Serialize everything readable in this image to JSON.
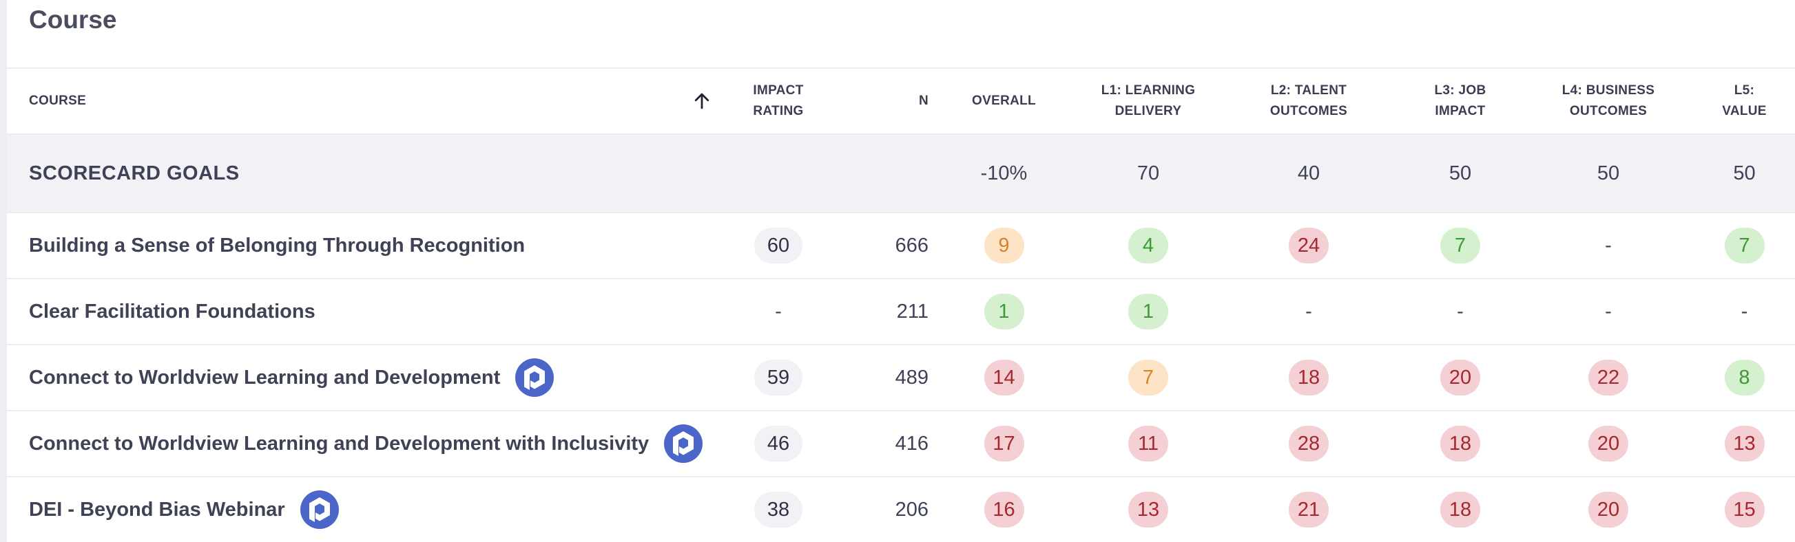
{
  "page": {
    "title": "Course"
  },
  "colors": {
    "green_bg": "#d4f0cf",
    "green_text": "#3e9a34",
    "orange_bg": "#fde4c7",
    "orange_text": "#d8832a",
    "red_bg": "#f4cfd4",
    "red_text": "#a8262f",
    "neutral_bg": "#f1f1f6",
    "logo": "#4b66c8"
  },
  "table": {
    "headers": {
      "course": "COURSE",
      "impact_rating": [
        "IMPACT",
        "RATING"
      ],
      "n": "N",
      "overall": "OVERALL",
      "l1": [
        "L1: LEARNING",
        "DELIVERY"
      ],
      "l2": [
        "L2: TALENT",
        "OUTCOMES"
      ],
      "l3": [
        "L3: JOB",
        "IMPACT"
      ],
      "l4": [
        "L4: BUSINESS",
        "OUTCOMES"
      ],
      "l5": [
        "L5:",
        "VALUE"
      ]
    },
    "sort_icon": "arrow-up-icon",
    "goals": {
      "label": "SCORECARD GOALS",
      "overall": "-10%",
      "l1": "70",
      "l2": "40",
      "l3": "50",
      "l4": "50",
      "l5": "50"
    },
    "rows": [
      {
        "course": "Building a Sense of Belonging Through Recognition",
        "has_logo": false,
        "impact_rating": "60",
        "n": "666",
        "overall": {
          "value": "9",
          "status": "orange"
        },
        "l1": {
          "value": "4",
          "status": "green"
        },
        "l2": {
          "value": "24",
          "status": "red"
        },
        "l3": {
          "value": "7",
          "status": "green"
        },
        "l4": {
          "value": "-",
          "status": "none"
        },
        "l5": {
          "value": "7",
          "status": "green"
        }
      },
      {
        "course": "Clear Facilitation Foundations",
        "has_logo": false,
        "impact_rating": "-",
        "n": "211",
        "overall": {
          "value": "1",
          "status": "green"
        },
        "l1": {
          "value": "1",
          "status": "green"
        },
        "l2": {
          "value": "-",
          "status": "none"
        },
        "l3": {
          "value": "-",
          "status": "none"
        },
        "l4": {
          "value": "-",
          "status": "none"
        },
        "l5": {
          "value": "-",
          "status": "none"
        }
      },
      {
        "course": "Connect to Worldview Learning and Development",
        "has_logo": true,
        "impact_rating": "59",
        "n": "489",
        "overall": {
          "value": "14",
          "status": "red"
        },
        "l1": {
          "value": "7",
          "status": "orange"
        },
        "l2": {
          "value": "18",
          "status": "red"
        },
        "l3": {
          "value": "20",
          "status": "red"
        },
        "l4": {
          "value": "22",
          "status": "red"
        },
        "l5": {
          "value": "8",
          "status": "green"
        }
      },
      {
        "course": "Connect to Worldview Learning and Development with Inclusivity",
        "has_logo": true,
        "impact_rating": "46",
        "n": "416",
        "overall": {
          "value": "17",
          "status": "red"
        },
        "l1": {
          "value": "11",
          "status": "red"
        },
        "l2": {
          "value": "28",
          "status": "red"
        },
        "l3": {
          "value": "18",
          "status": "red"
        },
        "l4": {
          "value": "20",
          "status": "red"
        },
        "l5": {
          "value": "13",
          "status": "red"
        }
      },
      {
        "course": "DEI - Beyond Bias Webinar",
        "has_logo": true,
        "impact_rating": "38",
        "n": "206",
        "overall": {
          "value": "16",
          "status": "red"
        },
        "l1": {
          "value": "13",
          "status": "red"
        },
        "l2": {
          "value": "21",
          "status": "red"
        },
        "l3": {
          "value": "18",
          "status": "red"
        },
        "l4": {
          "value": "20",
          "status": "red"
        },
        "l5": {
          "value": "15",
          "status": "red"
        }
      }
    ]
  }
}
